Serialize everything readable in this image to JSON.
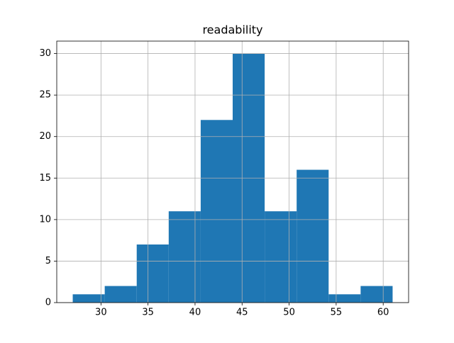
{
  "chart_data": {
    "type": "histogram",
    "title": "readability",
    "bins": [
      27,
      30.4,
      33.8,
      37.2,
      40.6,
      44,
      47.4,
      50.8,
      54.2,
      57.6,
      61
    ],
    "values": [
      1,
      2,
      7,
      11,
      22,
      30,
      11,
      16,
      1,
      2
    ],
    "color": "#1f77b4",
    "xlim": [
      25.3,
      62.7
    ],
    "xticks": [
      30,
      35,
      40,
      45,
      50,
      55,
      60
    ],
    "ylim": [
      0,
      31.5
    ],
    "yticks": [
      0,
      5,
      10,
      15,
      20,
      25,
      30
    ],
    "grid": true
  }
}
